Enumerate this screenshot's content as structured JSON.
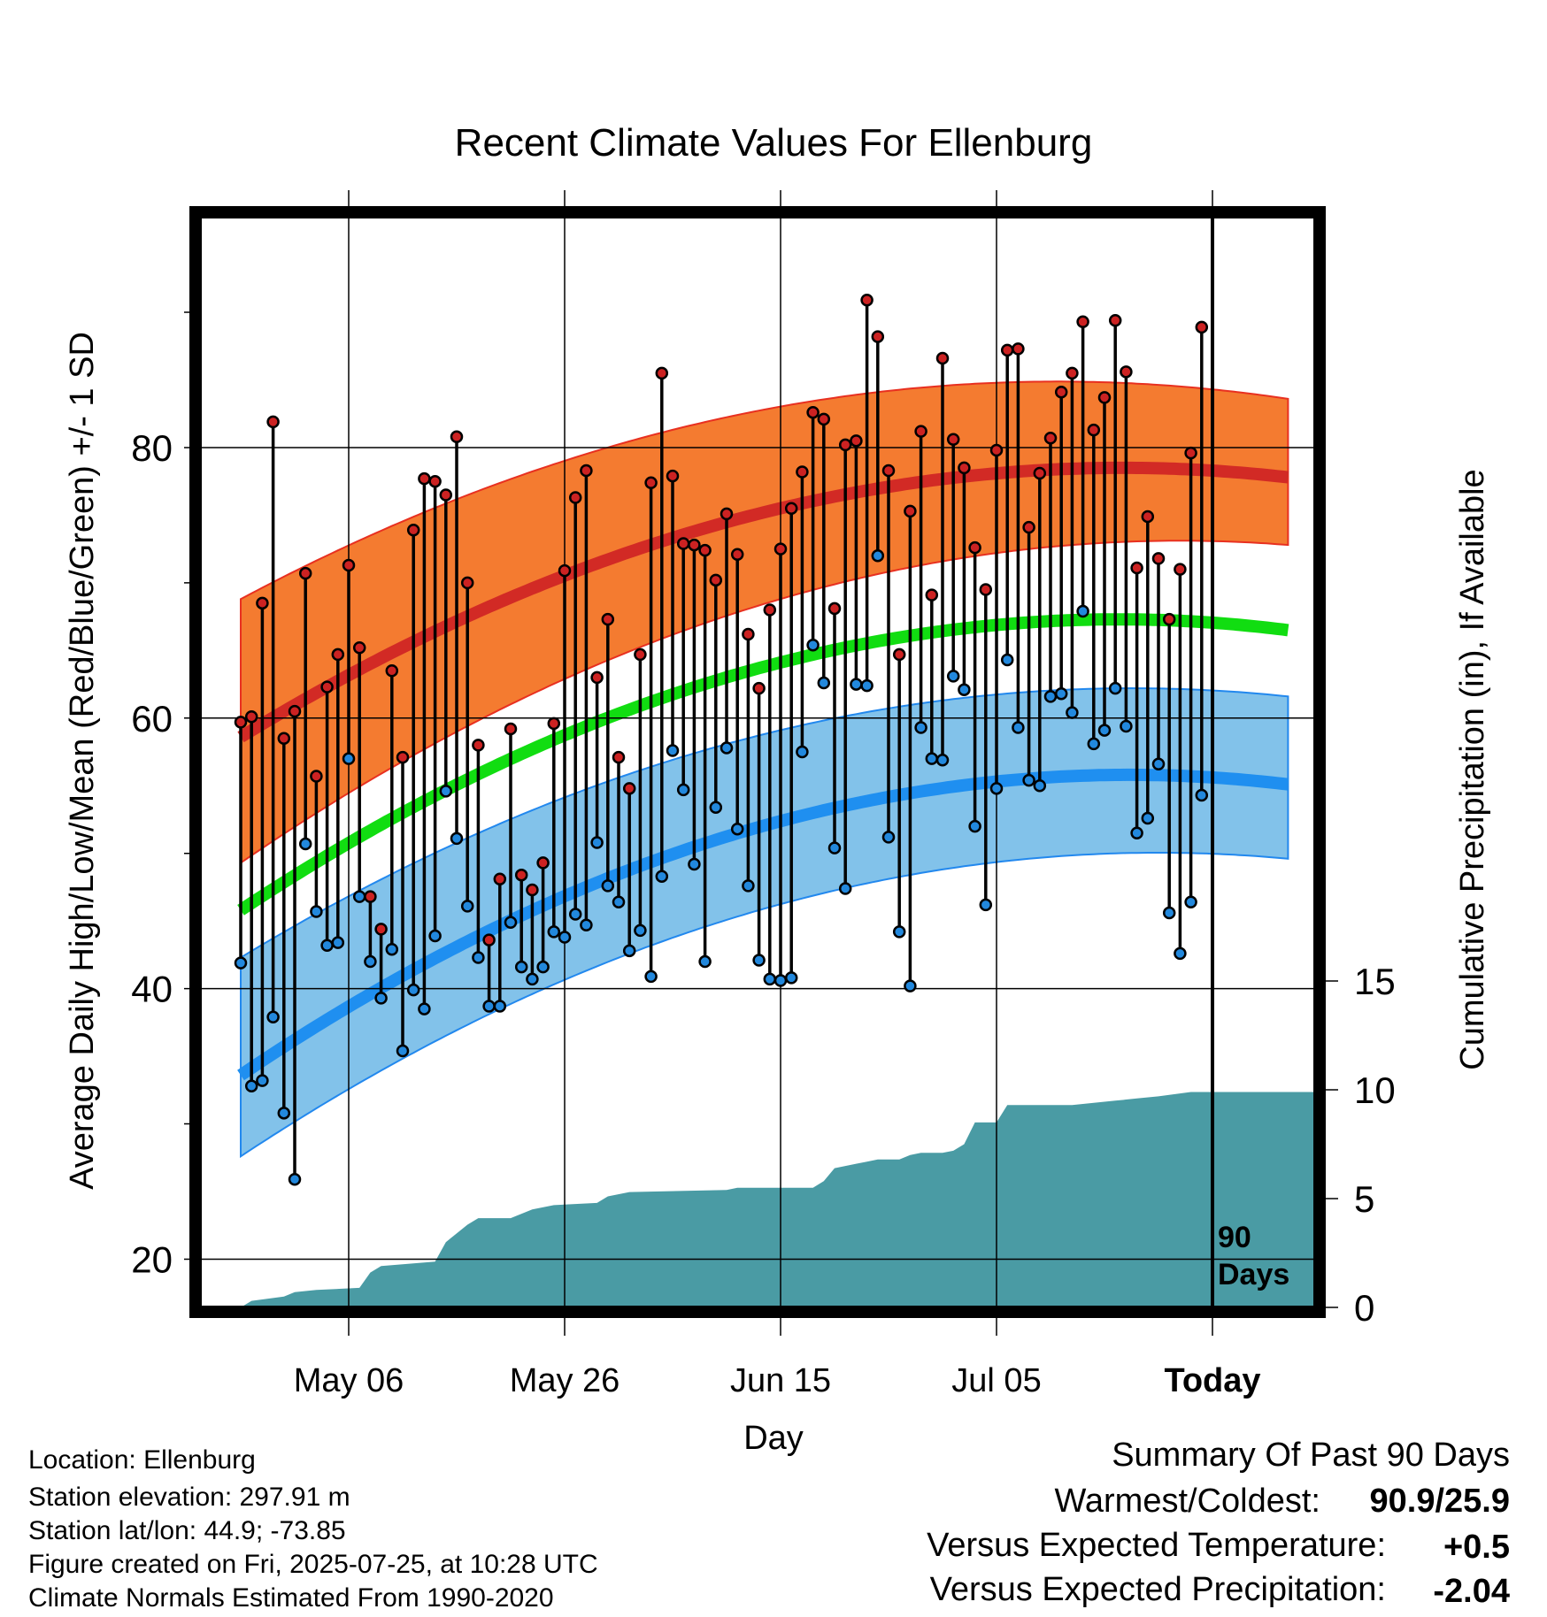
{
  "chart_data": {
    "type": "line",
    "title": "Recent Climate Values For Ellenburg",
    "xlabel": "Day",
    "ylabel": "Average Daily High/Low/Mean (Red/Blue/Green) +/- 1 SD",
    "ylabel_right": "Cumulative Precipitation (in), If Available",
    "x_tick_labels": [
      "May 06",
      "May 26",
      "Jun 15",
      "Jul 05",
      "Today"
    ],
    "ylim": [
      16.5,
      97
    ],
    "y_ticks": [
      20,
      40,
      60,
      80
    ],
    "y_minor_ticks": [
      30,
      50,
      70,
      90
    ],
    "y2_ticks": [
      0,
      5,
      10,
      15
    ],
    "grid": true,
    "days_marker": "90\nDays",
    "normals": {
      "high_mean": [
        58.6,
        78.5,
        77.8
      ],
      "high_upper": [
        68.8,
        84.8,
        83.6
      ],
      "high_lower": [
        49.3,
        73.0,
        72.8
      ],
      "low_mean": [
        33.6,
        55.8,
        55.1
      ],
      "low_upper": [
        42.3,
        62.2,
        61.6
      ],
      "low_lower": [
        27.6,
        50.0,
        49.6
      ],
      "mean": [
        45.8,
        67.3,
        66.5
      ]
    },
    "series": [
      {
        "name": "High",
        "color": "#cc2222",
        "values": [
          59.7,
          60.1,
          68.5,
          81.9,
          58.5,
          60.5,
          70.7,
          55.7,
          62.3,
          64.7,
          71.3,
          65.2,
          46.8,
          44.4,
          63.5,
          57.1,
          73.9,
          77.7,
          77.5,
          76.5,
          80.8,
          70.0,
          58.0,
          43.6,
          48.1,
          59.2,
          48.4,
          47.3,
          49.3,
          59.6,
          70.9,
          76.3,
          78.3,
          63.0,
          67.3,
          57.1,
          54.8,
          64.7,
          77.4,
          85.5,
          77.9,
          72.9,
          72.8,
          72.4,
          70.2,
          75.1,
          72.1,
          66.2,
          62.2,
          68.0,
          72.5,
          75.5,
          78.2,
          82.6,
          82.1,
          68.1,
          80.2,
          80.5,
          90.9,
          88.2,
          78.3,
          64.7,
          75.3,
          81.2,
          69.1,
          86.6,
          80.6,
          78.5,
          72.6,
          69.5,
          79.8,
          87.2,
          87.3,
          74.1,
          78.1,
          80.7,
          84.1,
          85.5,
          89.3,
          81.3,
          83.7,
          89.4,
          85.6,
          71.1,
          74.9,
          71.8,
          67.3,
          71.0,
          79.6,
          88.9
        ]
      },
      {
        "name": "Low",
        "color": "#2288dd",
        "values": [
          41.9,
          32.8,
          33.2,
          37.9,
          30.8,
          25.9,
          50.7,
          45.7,
          43.2,
          43.4,
          57.0,
          46.8,
          42.0,
          39.3,
          42.9,
          35.4,
          39.9,
          38.5,
          43.9,
          54.6,
          51.1,
          46.1,
          42.3,
          38.7,
          38.7,
          44.9,
          41.6,
          40.7,
          41.6,
          44.2,
          43.8,
          45.5,
          44.7,
          50.8,
          47.6,
          46.4,
          42.8,
          44.3,
          40.9,
          48.3,
          57.6,
          54.7,
          49.2,
          42.0,
          53.4,
          57.8,
          51.8,
          47.6,
          42.1,
          40.7,
          40.6,
          40.8,
          57.5,
          65.4,
          62.6,
          50.4,
          47.4,
          62.5,
          62.4,
          72.0,
          51.2,
          44.2,
          40.2,
          59.3,
          57.0,
          56.9,
          63.1,
          62.1,
          52.0,
          46.2,
          54.8,
          64.3,
          59.3,
          55.4,
          55.0,
          61.6,
          61.8,
          60.4,
          67.9,
          58.1,
          59.1,
          62.2,
          59.4,
          51.5,
          52.6,
          56.6,
          45.6,
          42.6,
          46.4,
          54.3
        ]
      }
    ],
    "precipitation": [
      [
        0,
        0.0
      ],
      [
        1,
        0.3
      ],
      [
        4,
        0.5
      ],
      [
        5,
        0.7
      ],
      [
        7,
        0.8
      ],
      [
        11,
        0.9
      ],
      [
        12,
        1.6
      ],
      [
        13,
        1.9
      ],
      [
        18,
        2.1
      ],
      [
        19,
        3.0
      ],
      [
        21,
        3.8
      ],
      [
        22,
        4.1
      ],
      [
        25,
        4.1
      ],
      [
        27,
        4.5
      ],
      [
        29,
        4.7
      ],
      [
        33,
        4.8
      ],
      [
        34,
        5.1
      ],
      [
        36,
        5.3
      ],
      [
        45,
        5.4
      ],
      [
        46,
        5.5
      ],
      [
        53,
        5.5
      ],
      [
        54,
        5.8
      ],
      [
        55,
        6.4
      ],
      [
        56,
        6.5
      ],
      [
        57,
        6.6
      ],
      [
        58,
        6.7
      ],
      [
        59,
        6.8
      ],
      [
        61,
        6.8
      ],
      [
        62,
        7.0
      ],
      [
        63,
        7.1
      ],
      [
        65,
        7.1
      ],
      [
        66,
        7.2
      ],
      [
        67,
        7.5
      ],
      [
        68,
        8.5
      ],
      [
        70,
        8.5
      ],
      [
        71,
        9.3
      ],
      [
        75,
        9.3
      ],
      [
        77,
        9.3
      ],
      [
        81,
        9.5
      ],
      [
        83,
        9.6
      ],
      [
        85,
        9.7
      ],
      [
        88,
        9.9
      ],
      [
        90,
        9.9
      ]
    ],
    "summary": {
      "heading": "Summary Of Past 90 Days",
      "warmest_coldest_label": "Warmest/Coldest:",
      "warmest_coldest_value": "90.9/25.9",
      "temp_label": "Versus Expected Temperature:",
      "temp_value": "+0.5",
      "temp_color": "#cc2222",
      "precip_label": "Versus Expected Precipitation:",
      "precip_value": "-2.04",
      "precip_color": "#a0522d"
    },
    "info": [
      "Location: Ellenburg",
      "Station elevation: 297.91 m",
      "Station lat/lon: 44.9; -73.85",
      "Figure created on Fri, 2025-07-25, at 10:28 UTC",
      "Climate Normals Estimated From 1990-2020"
    ],
    "colors": {
      "high_band": "#f47b30",
      "high_line": "#d22a25",
      "low_band": "#82c2ea",
      "low_line": "#1f8ff0",
      "mean_line": "#11dd11",
      "precip_fill": "#4a9ba4",
      "band_edge_high": "#e83020",
      "band_edge_low": "#2288ee"
    }
  }
}
